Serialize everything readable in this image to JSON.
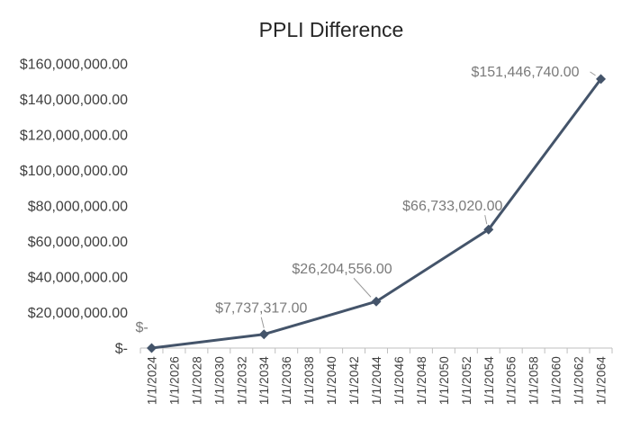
{
  "chart_data": {
    "type": "line",
    "title": "PPLI Difference",
    "xlabel": "",
    "ylabel": "",
    "ylim": [
      0,
      160000000
    ],
    "yticks": [
      {
        "value": 0,
        "label": "$-"
      },
      {
        "value": 20000000,
        "label": "$20,000,000.00"
      },
      {
        "value": 40000000,
        "label": "$40,000,000.00"
      },
      {
        "value": 60000000,
        "label": "$60,000,000.00"
      },
      {
        "value": 80000000,
        "label": "$80,000,000.00"
      },
      {
        "value": 100000000,
        "label": "$100,000,000.00"
      },
      {
        "value": 120000000,
        "label": "$120,000,000.00"
      },
      {
        "value": 140000000,
        "label": "$140,000,000.00"
      },
      {
        "value": 160000000,
        "label": "$160,000,000.00"
      }
    ],
    "categories": [
      "1/1/2024",
      "1/1/2026",
      "1/1/2028",
      "1/1/2030",
      "1/1/2032",
      "1/1/2034",
      "1/1/2036",
      "1/1/2038",
      "1/1/2040",
      "1/1/2042",
      "1/1/2044",
      "1/1/2046",
      "1/1/2048",
      "1/1/2050",
      "1/1/2052",
      "1/1/2054",
      "1/1/2056",
      "1/1/2058",
      "1/1/2060",
      "1/1/2062",
      "1/1/2064"
    ],
    "series": [
      {
        "color": "#44546a",
        "points": [
          {
            "x": "1/1/2024",
            "y": 0,
            "label": "$-"
          },
          {
            "x": "1/1/2034",
            "y": 7737317,
            "label": "$7,737,317.00"
          },
          {
            "x": "1/1/2044",
            "y": 26204556,
            "label": "$26,204,556.00"
          },
          {
            "x": "1/1/2054",
            "y": 66733020,
            "label": "$66,733,020.00"
          },
          {
            "x": "1/1/2064",
            "y": 151446740,
            "label": "$151,446,740.00"
          }
        ]
      }
    ],
    "grid": false,
    "legend": "none"
  }
}
